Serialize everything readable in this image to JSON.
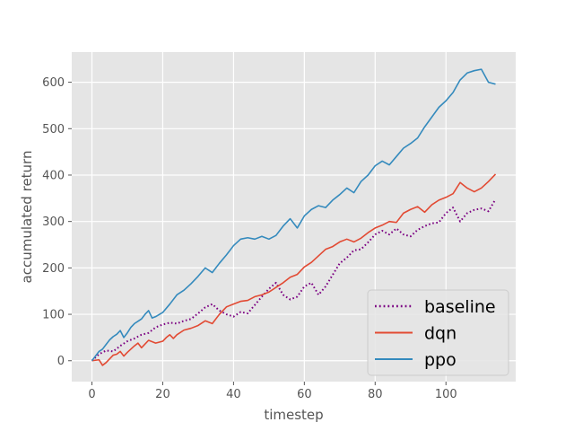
{
  "chart_data": {
    "type": "line",
    "title": "",
    "xlabel": "timestep",
    "ylabel": "accumulated return",
    "xlim": [
      -5.7,
      119.7
    ],
    "ylim": [
      -45,
      665
    ],
    "xticks": [
      0,
      20,
      40,
      60,
      80,
      100
    ],
    "yticks": [
      0,
      100,
      200,
      300,
      400,
      500,
      600
    ],
    "xtick_labels": [
      "0",
      "20",
      "40",
      "60",
      "80",
      "100"
    ],
    "ytick_labels": [
      "0",
      "100",
      "200",
      "300",
      "400",
      "500",
      "600"
    ],
    "grid": true,
    "style": "ggplot",
    "legend_placement": "lower-right",
    "series": [
      {
        "name": "baseline",
        "color": "#7b0082",
        "linestyle": "dotted",
        "x": [
          0,
          2,
          4,
          6,
          8,
          10,
          12,
          14,
          16,
          18,
          20,
          22,
          24,
          26,
          28,
          30,
          32,
          34,
          36,
          38,
          40,
          42,
          44,
          46,
          48,
          50,
          52,
          54,
          56,
          58,
          60,
          62,
          64,
          66,
          68,
          70,
          72,
          74,
          76,
          78,
          80,
          82,
          84,
          86,
          88,
          90,
          92,
          94,
          96,
          98,
          100,
          102,
          104,
          106,
          108,
          110,
          112,
          114
        ],
        "y": [
          0,
          14,
          22,
          20,
          32,
          42,
          48,
          56,
          60,
          72,
          78,
          82,
          80,
          86,
          90,
          102,
          115,
          122,
          108,
          100,
          95,
          105,
          102,
          120,
          138,
          155,
          168,
          142,
          132,
          138,
          160,
          168,
          142,
          160,
          185,
          210,
          222,
          238,
          240,
          255,
          272,
          280,
          272,
          285,
          272,
          268,
          282,
          290,
          296,
          298,
          318,
          330,
          300,
          318,
          325,
          328,
          322,
          348
        ]
      },
      {
        "name": "dqn",
        "color": "#e24a33",
        "linestyle": "solid",
        "x": [
          0,
          2,
          3,
          4,
          6,
          7,
          8,
          9,
          10,
          12,
          13,
          14,
          16,
          18,
          20,
          21,
          22,
          23,
          24,
          26,
          28,
          30,
          32,
          34,
          36,
          38,
          40,
          42,
          44,
          46,
          48,
          50,
          52,
          54,
          56,
          58,
          60,
          62,
          64,
          66,
          68,
          70,
          72,
          74,
          76,
          78,
          80,
          82,
          84,
          86,
          88,
          90,
          92,
          94,
          96,
          98,
          100,
          102,
          104,
          106,
          108,
          110,
          112,
          114
        ],
        "y": [
          0,
          2,
          -10,
          -4,
          12,
          14,
          20,
          10,
          18,
          32,
          38,
          28,
          44,
          38,
          42,
          50,
          56,
          48,
          56,
          66,
          70,
          76,
          86,
          80,
          100,
          116,
          122,
          128,
          130,
          138,
          142,
          148,
          158,
          168,
          180,
          186,
          202,
          212,
          226,
          240,
          246,
          256,
          262,
          256,
          264,
          276,
          286,
          292,
          300,
          298,
          318,
          326,
          332,
          320,
          336,
          346,
          352,
          360,
          384,
          372,
          364,
          372,
          386,
          402
        ]
      },
      {
        "name": "ppo",
        "color": "#348abd",
        "linestyle": "solid",
        "x": [
          0,
          1,
          2,
          3,
          4,
          5,
          6,
          7,
          8,
          9,
          10,
          11,
          12,
          13,
          14,
          15,
          16,
          17,
          18,
          20,
          22,
          24,
          26,
          28,
          30,
          32,
          34,
          36,
          38,
          40,
          42,
          44,
          46,
          48,
          50,
          52,
          54,
          56,
          58,
          60,
          62,
          64,
          66,
          68,
          70,
          72,
          74,
          76,
          78,
          80,
          82,
          84,
          86,
          88,
          90,
          92,
          94,
          96,
          98,
          100,
          102,
          104,
          106,
          108,
          110,
          112,
          114
        ],
        "y": [
          0,
          10,
          20,
          25,
          35,
          45,
          52,
          57,
          65,
          50,
          60,
          72,
          80,
          85,
          90,
          100,
          108,
          92,
          95,
          104,
          122,
          142,
          152,
          166,
          182,
          200,
          190,
          210,
          228,
          248,
          262,
          265,
          262,
          268,
          262,
          270,
          290,
          306,
          286,
          312,
          326,
          334,
          330,
          346,
          358,
          372,
          362,
          386,
          400,
          420,
          430,
          422,
          440,
          458,
          468,
          480,
          504,
          525,
          546,
          560,
          578,
          605,
          620,
          625,
          628,
          600,
          596
        ]
      }
    ]
  }
}
